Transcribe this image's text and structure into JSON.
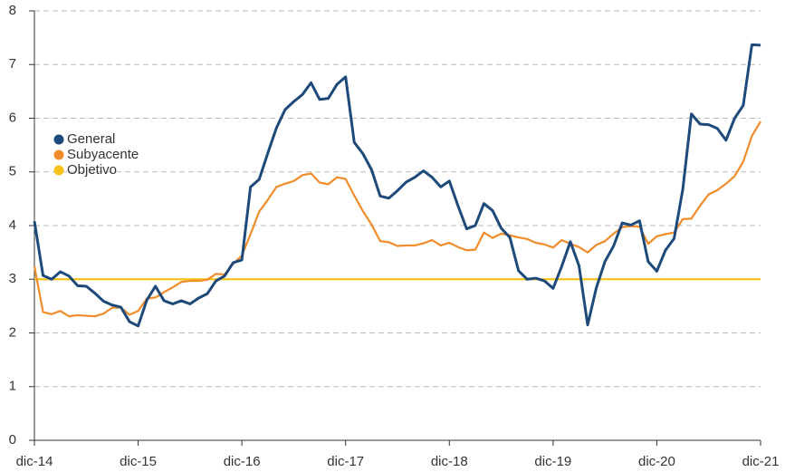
{
  "chart_data": {
    "type": "line",
    "categories": [
      "dic-14",
      null,
      null,
      null,
      null,
      null,
      null,
      null,
      null,
      null,
      null,
      null,
      "dic-15",
      null,
      null,
      null,
      null,
      null,
      null,
      null,
      null,
      null,
      null,
      null,
      "dic-16",
      null,
      null,
      null,
      null,
      null,
      null,
      null,
      null,
      null,
      null,
      null,
      "dic-17",
      null,
      null,
      null,
      null,
      null,
      null,
      null,
      null,
      null,
      null,
      null,
      "dic-18",
      null,
      null,
      null,
      null,
      null,
      null,
      null,
      null,
      null,
      null,
      null,
      "dic-19",
      null,
      null,
      null,
      null,
      null,
      null,
      null,
      null,
      null,
      null,
      null,
      "dic-20",
      null,
      null,
      null,
      null,
      null,
      null,
      null,
      null,
      null,
      null,
      null,
      "dic-21"
    ],
    "series": [
      {
        "name": "General",
        "color": "#1d4a7a",
        "values": [
          4.08,
          3.07,
          3.0,
          3.14,
          3.06,
          2.88,
          2.87,
          2.74,
          2.59,
          2.52,
          2.48,
          2.21,
          2.13,
          2.61,
          2.87,
          2.6,
          2.54,
          2.6,
          2.54,
          2.65,
          2.73,
          2.97,
          3.06,
          3.31,
          3.36,
          4.72,
          4.86,
          5.35,
          5.82,
          6.16,
          6.31,
          6.44,
          6.66,
          6.35,
          6.37,
          6.63,
          6.77,
          5.55,
          5.34,
          5.04,
          4.55,
          4.51,
          4.65,
          4.81,
          4.9,
          5.02,
          4.9,
          4.72,
          4.83,
          4.37,
          3.94,
          4.0,
          4.41,
          4.28,
          3.95,
          3.78,
          3.16,
          3.0,
          3.02,
          2.97,
          2.83,
          3.24,
          3.7,
          3.25,
          2.15,
          2.84,
          3.33,
          3.62,
          4.05,
          4.01,
          4.09,
          3.33,
          3.15,
          3.54,
          3.76,
          4.67,
          6.08,
          5.89,
          5.88,
          5.81,
          5.59,
          6.0,
          6.24,
          7.37,
          7.36
        ]
      },
      {
        "name": "Subyacente",
        "color": "#f08c2a",
        "values": [
          3.24,
          2.39,
          2.35,
          2.41,
          2.31,
          2.33,
          2.32,
          2.31,
          2.36,
          2.47,
          2.47,
          2.34,
          2.41,
          2.64,
          2.66,
          2.76,
          2.85,
          2.95,
          2.97,
          2.97,
          2.99,
          3.1,
          3.09,
          3.29,
          3.44,
          3.84,
          4.26,
          4.48,
          4.72,
          4.78,
          4.83,
          4.94,
          4.97,
          4.8,
          4.77,
          4.9,
          4.87,
          4.56,
          4.27,
          4.02,
          3.71,
          3.69,
          3.62,
          3.63,
          3.63,
          3.67,
          3.73,
          3.63,
          3.68,
          3.6,
          3.54,
          3.55,
          3.87,
          3.77,
          3.85,
          3.82,
          3.78,
          3.75,
          3.68,
          3.65,
          3.59,
          3.73,
          3.66,
          3.6,
          3.5,
          3.64,
          3.71,
          3.85,
          3.97,
          3.99,
          3.98,
          3.66,
          3.8,
          3.84,
          3.87,
          4.12,
          4.13,
          4.37,
          4.58,
          4.66,
          4.78,
          4.92,
          5.19,
          5.67,
          5.94
        ]
      },
      {
        "name": "Objetivo",
        "color": "#f7c31a",
        "values": [
          3,
          3,
          3,
          3,
          3,
          3,
          3,
          3,
          3,
          3,
          3,
          3,
          3,
          3,
          3,
          3,
          3,
          3,
          3,
          3,
          3,
          3,
          3,
          3,
          3,
          3,
          3,
          3,
          3,
          3,
          3,
          3,
          3,
          3,
          3,
          3,
          3,
          3,
          3,
          3,
          3,
          3,
          3,
          3,
          3,
          3,
          3,
          3,
          3,
          3,
          3,
          3,
          3,
          3,
          3,
          3,
          3,
          3,
          3,
          3,
          3,
          3,
          3,
          3,
          3,
          3,
          3,
          3,
          3,
          3,
          3,
          3,
          3,
          3,
          3,
          3,
          3,
          3,
          3,
          3,
          3,
          3,
          3,
          3,
          3
        ]
      }
    ],
    "ylim": [
      0,
      8
    ],
    "yticks": [
      0,
      1,
      2,
      3,
      4,
      5,
      6,
      7,
      8
    ],
    "grid": true
  }
}
